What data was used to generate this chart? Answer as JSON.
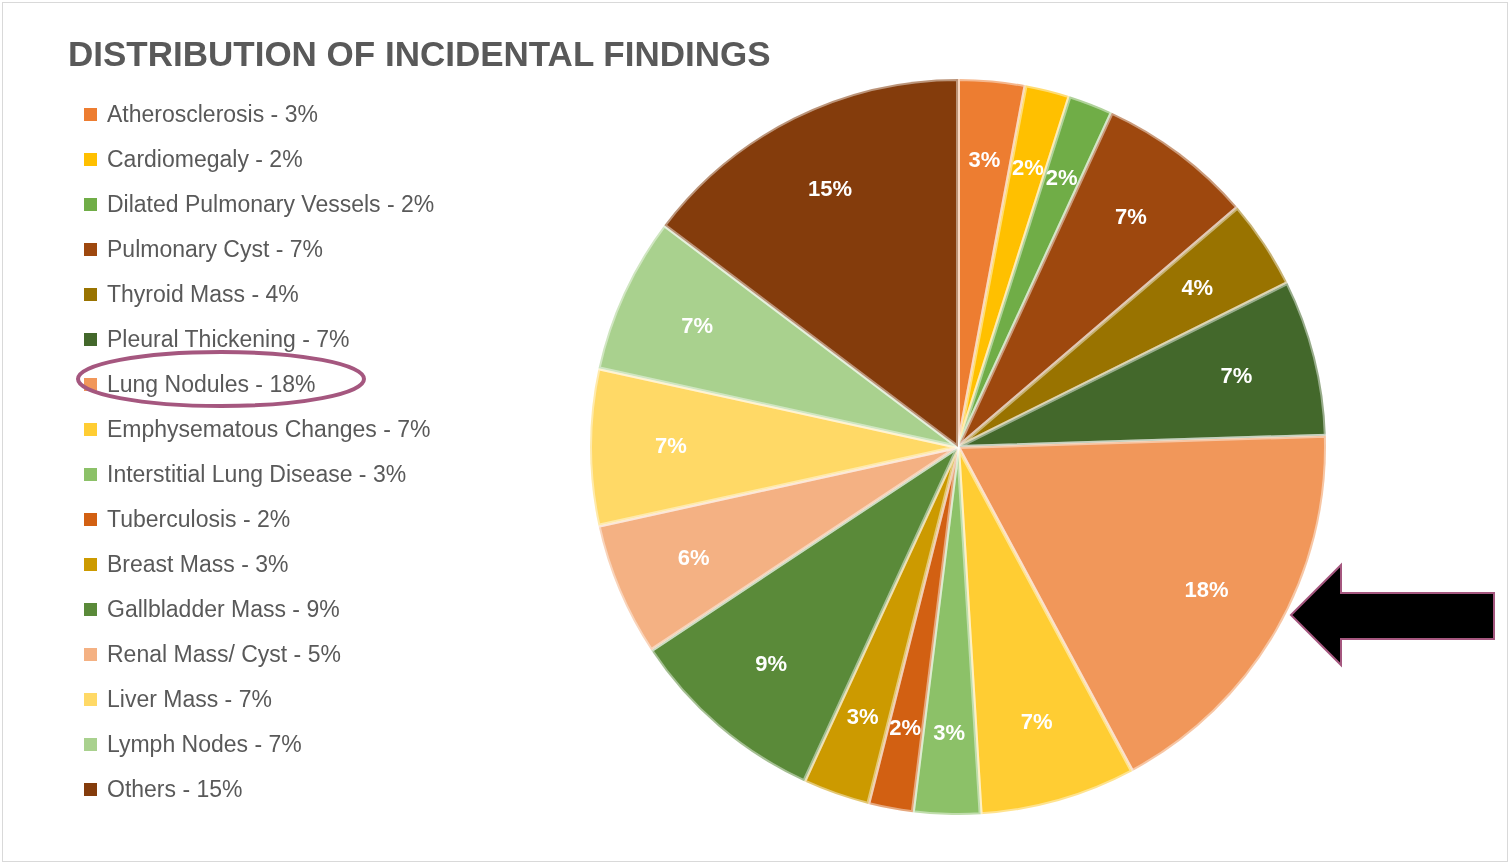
{
  "chart_data": {
    "type": "pie",
    "title": "DISTRIBUTION OF INCIDENTAL FINDINGS",
    "categories": [
      "Atherosclerosis - 3%",
      "Cardiomegaly - 2%",
      "Dilated Pulmonary Vessels - 2%",
      "Pulmonary Cyst - 7%",
      "Thyroid Mass - 4%",
      "Pleural Thickening - 7%",
      "Lung Nodules - 18%",
      "Emphysematous Changes - 7%",
      "Interstitial Lung Disease - 3%",
      "Tuberculosis - 2%",
      "Breast Mass - 3%",
      "Gallbladder Mass - 9%",
      "Renal Mass/ Cyst - 5%",
      "Liver Mass - 7%",
      "Lymph Nodes - 7%",
      "Others - 15%"
    ],
    "values": [
      3,
      2,
      2,
      7,
      4,
      7,
      18,
      7,
      3,
      2,
      3,
      9,
      6,
      7,
      7,
      15
    ],
    "value_labels": [
      "3%",
      "2%",
      "2%",
      "7%",
      "4%",
      "7%",
      "18%",
      "7%",
      "3%",
      "2%",
      "3%",
      "9%",
      "6%",
      "7%",
      "7%",
      "15%"
    ],
    "colors": [
      "#ed7d31",
      "#ffc000",
      "#70ad47",
      "#9e480e",
      "#997300",
      "#43682b",
      "#f1975a",
      "#ffcd33",
      "#8cc168",
      "#d26012",
      "#cc9a00",
      "#5a8a39",
      "#f4b183",
      "#ffd966",
      "#a9d18e",
      "#843c0c"
    ],
    "legend": "left"
  }
}
